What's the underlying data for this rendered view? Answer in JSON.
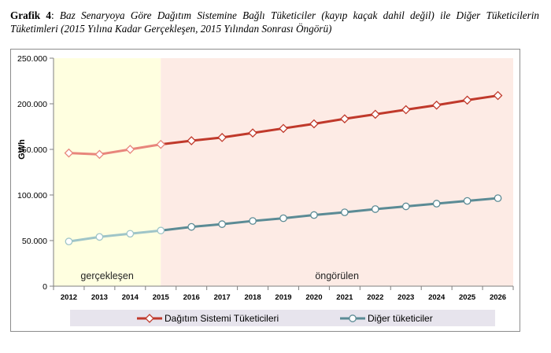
{
  "caption": {
    "label": "Grafik 4",
    "separator": ":",
    "text": "Baz Senaryoya Göre Dağıtım Sistemine Bağlı Tüketiciler (kayıp kaçak dahil değil) ile Diğer Tüketicilerin Tüketimleri (2015 Yılına Kadar Gerçekleşen, 2015 Yılından Sonrası Öngörü)"
  },
  "chart_data": {
    "type": "line",
    "title": "",
    "xlabel": "",
    "ylabel": "GWh",
    "ylim": [
      0,
      250000
    ],
    "yticks": [
      "0",
      "50.000",
      "100.000",
      "150.000",
      "200.000",
      "250.000"
    ],
    "categories": [
      "2012",
      "2013",
      "2014",
      "2015",
      "2016",
      "2017",
      "2018",
      "2019",
      "2020",
      "2021",
      "2022",
      "2023",
      "2024",
      "2025",
      "2026"
    ],
    "regions": [
      {
        "label": "gerçekleşen",
        "from": "2012",
        "to": "2015",
        "color": "#ffffe0"
      },
      {
        "label": "öngörülen",
        "from": "2015",
        "to": "2026",
        "color": "#fdebe5"
      }
    ],
    "series": [
      {
        "name": "Dağıtım Sistemi Tüketicileri",
        "color": "#c0392b",
        "color_actual": "#e8867c",
        "values": [
          146000,
          144500,
          150000,
          155500,
          159500,
          163000,
          168000,
          173000,
          178000,
          183500,
          188500,
          193500,
          198500,
          204000,
          209000
        ]
      },
      {
        "name": "Diğer tüketiciler",
        "color": "#5b8b95",
        "color_actual": "#9fc5c8",
        "values": [
          49000,
          54000,
          57500,
          61000,
          65000,
          68000,
          71500,
          74500,
          78000,
          81000,
          84500,
          87500,
          90500,
          93500,
          96500
        ]
      }
    ],
    "legend": "bottom",
    "grid": false
  }
}
